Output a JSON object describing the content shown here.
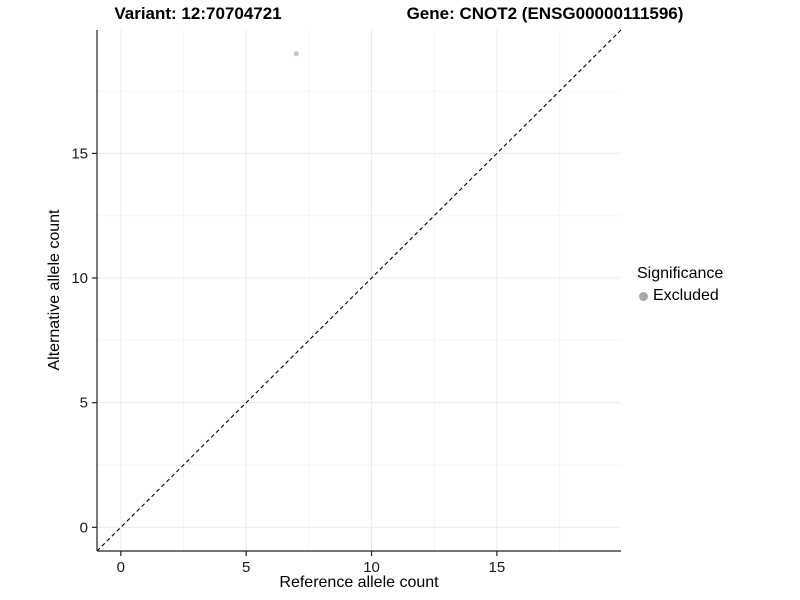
{
  "chart_data": {
    "type": "scatter",
    "titles": [
      "Variant: 12:70704721",
      "Gene: CNOT2 (ENSG00000111596)"
    ],
    "xlabel": "Reference allele count",
    "ylabel": "Alternative allele count",
    "xlim": [
      -0.95,
      19.95
    ],
    "ylim": [
      -0.95,
      19.95
    ],
    "x_ticks": [
      0,
      5,
      10,
      15
    ],
    "y_ticks": [
      0,
      5,
      10,
      15
    ],
    "x_minor_ticks": [
      2.5,
      7.5,
      12.5,
      17.5
    ],
    "y_minor_ticks": [
      2.5,
      7.5,
      12.5,
      17.5
    ],
    "grid": "major and minor gridlines, left and bottom axis lines only",
    "points": [
      {
        "x": 7,
        "y": 19,
        "series": "Excluded"
      }
    ],
    "identity_line": {
      "equation": "y = x",
      "style": "dashed",
      "from": [
        -0.95,
        -0.95
      ],
      "to": [
        19.95,
        19.95
      ]
    },
    "legend": {
      "title": "Significance",
      "position": "right",
      "entries": [
        {
          "label": "Excluded",
          "color": "#a8a8a8"
        }
      ]
    },
    "colors": {
      "point": "#c8c8c8",
      "legend_point": "#a8a8a8",
      "grid_major": "#ebebeb",
      "grid_minor": "#f5f5f5",
      "axis_line": "#222222",
      "tick_text": "#1a1a1a",
      "dashed_line": "#000000",
      "background": "#ffffff"
    }
  }
}
